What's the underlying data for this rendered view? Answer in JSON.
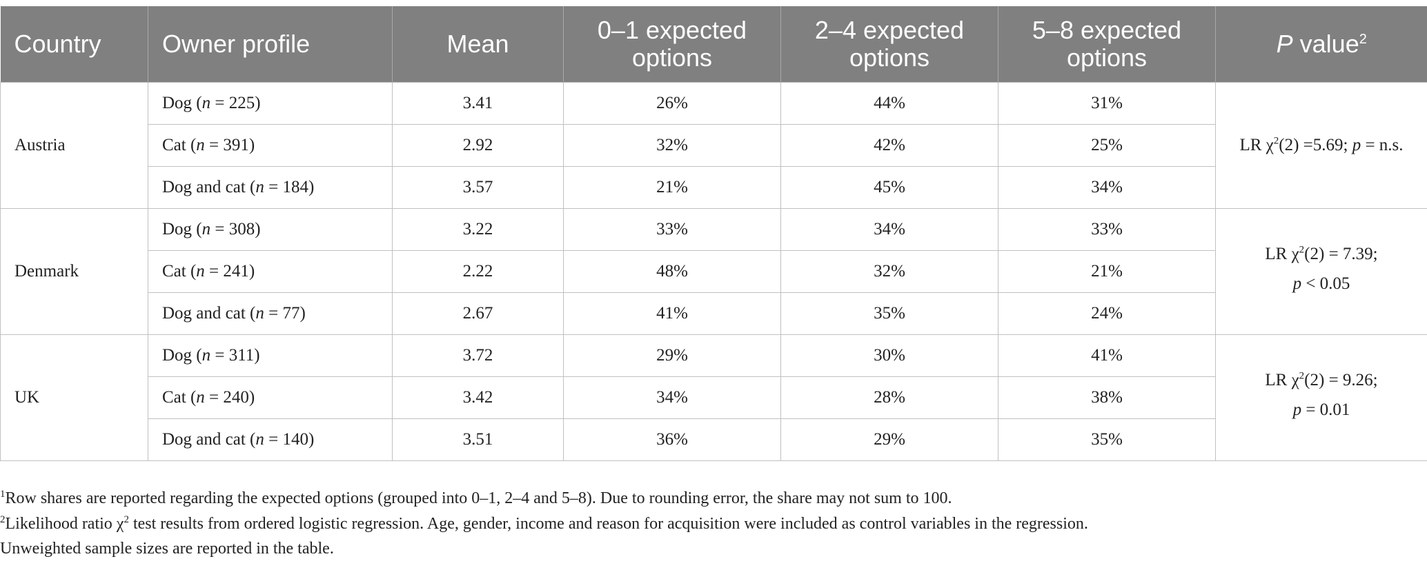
{
  "headers": {
    "country": "Country",
    "owner_profile": "Owner profile",
    "mean": "Mean",
    "opt01_line1": "0–1 expected",
    "opt01_line2": "options",
    "opt24_line1": "2–4 expected",
    "opt24_line2": "options",
    "opt58_line1": "5–8 expected",
    "opt58_line2": "options",
    "pvalue_italic": "P",
    "pvalue_rest": " value",
    "pvalue_sup": "2"
  },
  "rows": [
    {
      "profile": "Dog (",
      "n_label": "n",
      "n_value": " = 225)",
      "mean": "3.41",
      "o01": "26%",
      "o24": "44%",
      "o58": "31%"
    },
    {
      "profile": "Cat (",
      "n_label": "n",
      "n_value": " = 391)",
      "mean": "2.92",
      "o01": "32%",
      "o24": "42%",
      "o58": "25%"
    },
    {
      "profile": "Dog and cat (",
      "n_label": "n",
      "n_value": " = 184)",
      "mean": "3.57",
      "o01": "21%",
      "o24": "45%",
      "o58": "34%"
    },
    {
      "profile": "Dog (",
      "n_label": "n",
      "n_value": " = 308)",
      "mean": "3.22",
      "o01": "33%",
      "o24": "34%",
      "o58": "33%"
    },
    {
      "profile": "Cat (",
      "n_label": "n",
      "n_value": " = 241)",
      "mean": "2.22",
      "o01": "48%",
      "o24": "32%",
      "o58": "21%"
    },
    {
      "profile": "Dog and cat (",
      "n_label": "n",
      "n_value": " = 77)",
      "mean": "2.67",
      "o01": "41%",
      "o24": "35%",
      "o58": "24%"
    },
    {
      "profile": "Dog (",
      "n_label": "n",
      "n_value": " = 311)",
      "mean": "3.72",
      "o01": "29%",
      "o24": "30%",
      "o58": "41%"
    },
    {
      "profile": "Cat (",
      "n_label": "n",
      "n_value": " = 240)",
      "mean": "3.42",
      "o01": "34%",
      "o24": "28%",
      "o58": "38%"
    },
    {
      "profile": "Dog and cat (",
      "n_label": "n",
      "n_value": " = 140)",
      "mean": "3.51",
      "o01": "36%",
      "o24": "29%",
      "o58": "35%"
    }
  ],
  "groups": [
    {
      "country": "Austria",
      "p_pre": "LR χ",
      "p_sup": "2",
      "p_mid": "(2) =5.69; ",
      "p_ital": "p",
      "p_post": " = n.s.",
      "p_line2_ital": "",
      "p_line2": ""
    },
    {
      "country": "Denmark",
      "p_pre": "LR χ",
      "p_sup": "2",
      "p_mid": "(2) = 7.39;",
      "p_ital": "",
      "p_post": "",
      "p_line2_ital": "p",
      "p_line2": " < 0.05"
    },
    {
      "country": "UK",
      "p_pre": "LR χ",
      "p_sup": "2",
      "p_mid": "(2) = 9.26;",
      "p_ital": "",
      "p_post": "",
      "p_line2_ital": "p",
      "p_line2": " = 0.01"
    }
  ],
  "footnotes": {
    "fn1_sup": "1",
    "fn1_text": "Row shares are reported regarding the expected options (grouped into 0–1, 2–4 and 5–8). Due to rounding error, the share may not sum to 100.",
    "fn2_sup": "2",
    "fn2_pre": "Likelihood ratio χ",
    "fn2_chisup": "2",
    "fn2_text": " test results from ordered logistic regression. Age, gender, income and reason for acquisition were included as control variables in the regression.",
    "fn3_text": "Unweighted sample sizes are reported in the table."
  }
}
